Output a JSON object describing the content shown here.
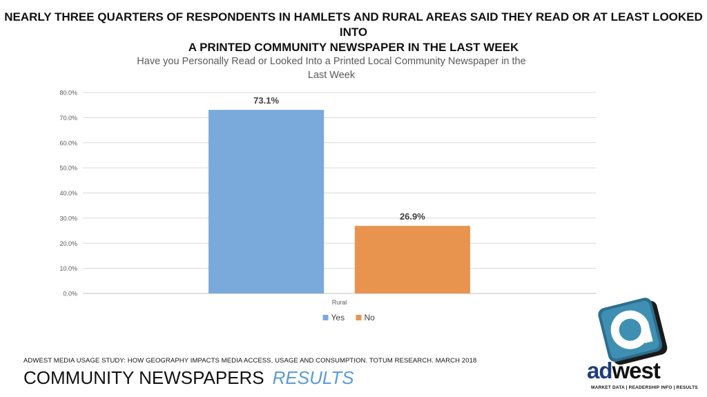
{
  "headline": {
    "line1": "NEARLY THREE QUARTERS OF RESPONDENTS IN HAMLETS AND RURAL AREAS SAID THEY READ OR AT LEAST LOOKED INTO",
    "line2": "A PRINTED COMMUNITY NEWSPAPER IN THE LAST WEEK"
  },
  "chart_data": {
    "type": "bar",
    "title_line1": "Have you Personally Read or Looked Into a Printed Local Community Newspaper in the",
    "title_line2": "Last Week",
    "categories": [
      "Rural"
    ],
    "series": [
      {
        "name": "Yes",
        "values": [
          73.1
        ],
        "label": "73.1%",
        "color": "#7aaadc"
      },
      {
        "name": "No",
        "values": [
          26.9
        ],
        "label": "26.9%",
        "color": "#e8944f"
      }
    ],
    "ylim": [
      0,
      80
    ],
    "yticks": [
      "0.0%",
      "10.0%",
      "20.0%",
      "30.0%",
      "40.0%",
      "50.0%",
      "60.0%",
      "70.0%",
      "80.0%"
    ],
    "grid": true,
    "legend": "bottom"
  },
  "footer": {
    "source": "ADWEST MEDIA USAGE STUDY: HOW GEOGRAPHY IMPACTS MEDIA ACCESS, USAGE AND CONSUMPTION.  TOTUM RESEARCH. MARCH 2018",
    "title": "COMMUNITY NEWSPAPERS",
    "title_accent": "RESULTS"
  },
  "logo": {
    "word_ad": "ad",
    "word_west": "west",
    "tagline": "MARKET DATA  |  READERSHIP INFO  |  RESULTS",
    "icon": "adwest-a-icon"
  }
}
